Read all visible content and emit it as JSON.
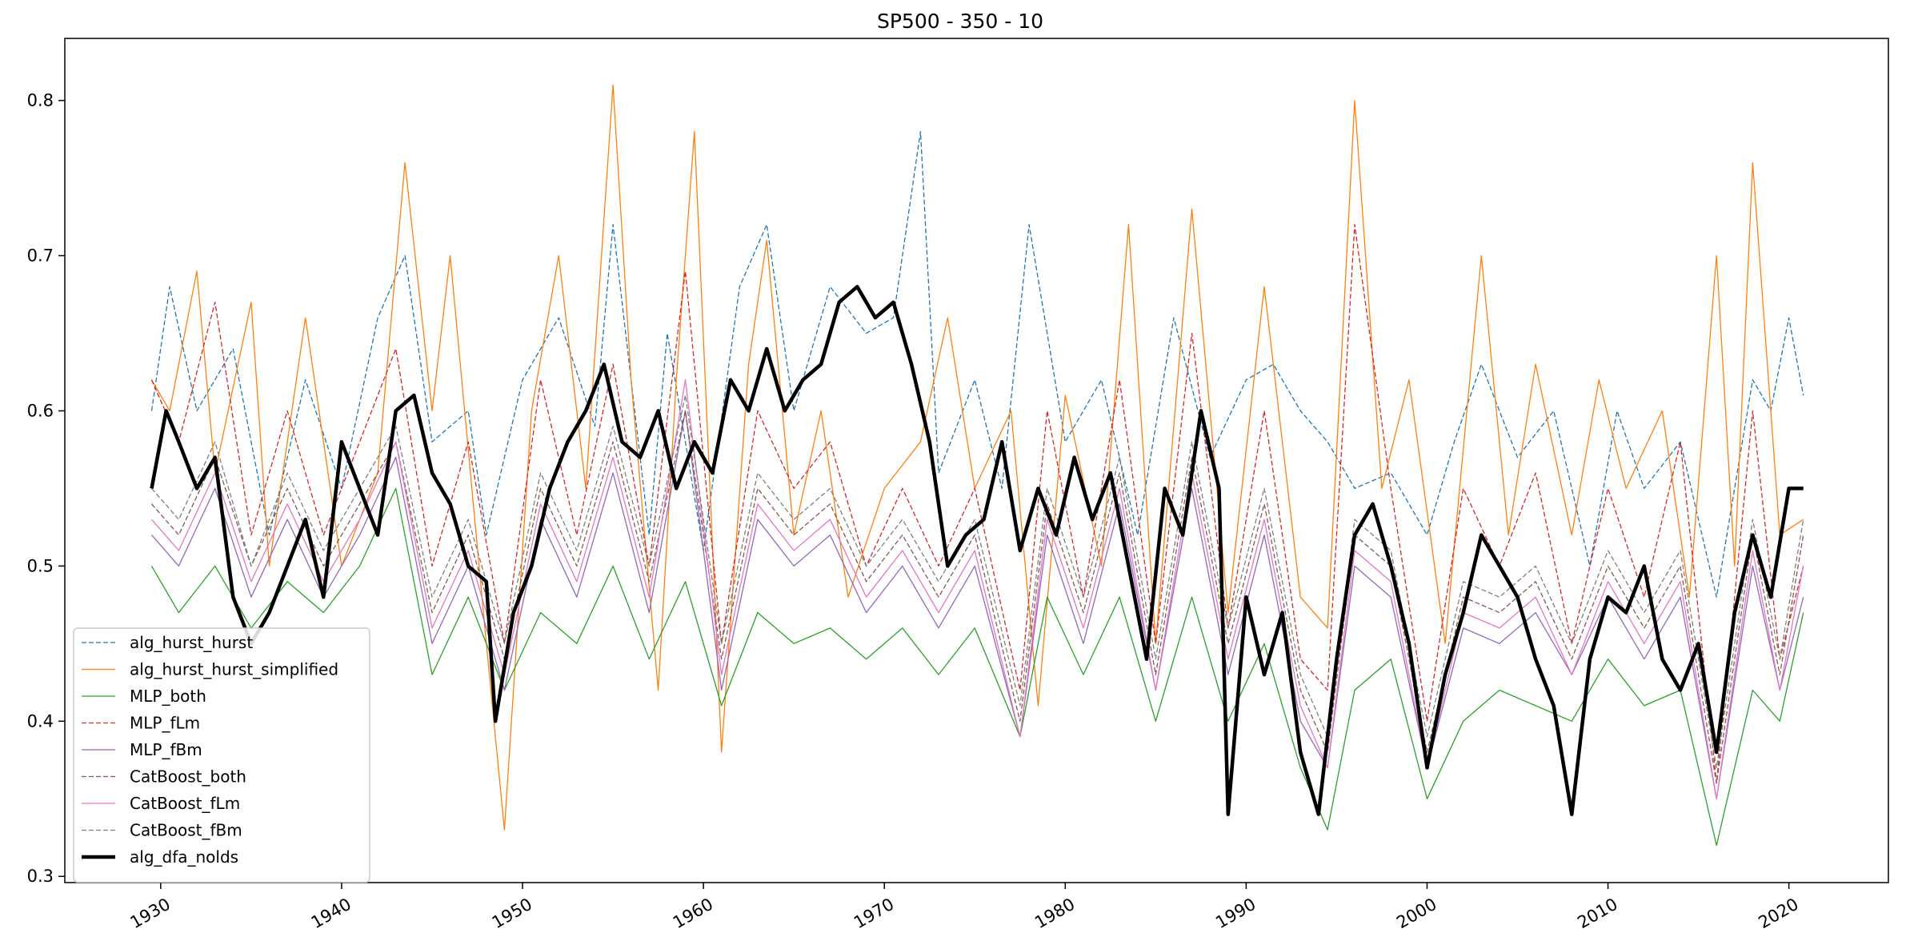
{
  "chart_data": {
    "type": "line",
    "title": "SP500 - 350 - 10",
    "xlabel": "",
    "ylabel": "",
    "xlim": [
      1924.7,
      2025.5
    ],
    "ylim": [
      0.296,
      0.84
    ],
    "x_ticks": [
      1930,
      1940,
      1950,
      1960,
      1970,
      1980,
      1990,
      2000,
      2010,
      2020
    ],
    "x_tick_labels": [
      "1930",
      "1940",
      "1950",
      "1960",
      "1970",
      "1980",
      "1990",
      "2000",
      "2010",
      "2020"
    ],
    "y_ticks": [
      0.3,
      0.4,
      0.5,
      0.6,
      0.7,
      0.8
    ],
    "y_tick_labels": [
      "0.3",
      "0.4",
      "0.5",
      "0.6",
      "0.7",
      "0.8"
    ],
    "grid": false,
    "legend_position": "lower-left",
    "series": [
      {
        "name": "alg_hurst_hurst",
        "color": "#1f77b4",
        "style": "dashed",
        "width": 1.3,
        "x": [
          1929.5,
          1930.5,
          1932,
          1934,
          1936,
          1938,
          1940,
          1942,
          1943.5,
          1945,
          1947,
          1948,
          1950,
          1952,
          1954,
          1955,
          1957,
          1958,
          1960,
          1962,
          1963.5,
          1965,
          1967,
          1969,
          1970.5,
          1972,
          1973,
          1975,
          1976.5,
          1978,
          1980,
          1982,
          1984,
          1986,
          1988,
          1990,
          1991.5,
          1993,
          1994.5,
          1996,
          1998,
          2000,
          2001.5,
          2003,
          2005,
          2007,
          2009,
          2010.5,
          2012,
          2014,
          2016,
          2018,
          2019,
          2020,
          2020.8
        ],
        "y": [
          0.6,
          0.68,
          0.6,
          0.64,
          0.52,
          0.62,
          0.55,
          0.66,
          0.7,
          0.58,
          0.6,
          0.52,
          0.62,
          0.66,
          0.59,
          0.72,
          0.52,
          0.65,
          0.51,
          0.68,
          0.72,
          0.6,
          0.68,
          0.65,
          0.66,
          0.78,
          0.56,
          0.62,
          0.55,
          0.72,
          0.58,
          0.62,
          0.52,
          0.66,
          0.57,
          0.62,
          0.63,
          0.6,
          0.58,
          0.55,
          0.56,
          0.52,
          0.58,
          0.63,
          0.57,
          0.6,
          0.5,
          0.6,
          0.55,
          0.58,
          0.48,
          0.62,
          0.6,
          0.66,
          0.61
        ]
      },
      {
        "name": "alg_hurst_hurst_simplified",
        "color": "#ff7f0e",
        "style": "solid",
        "width": 1.3,
        "x": [
          1929.5,
          1930.5,
          1932,
          1933,
          1935,
          1936,
          1938,
          1940,
          1942,
          1943.5,
          1945,
          1946,
          1948,
          1949,
          1950.5,
          1952,
          1953.5,
          1955,
          1956,
          1957.5,
          1958.5,
          1959.5,
          1961,
          1962.5,
          1963.5,
          1965,
          1966.5,
          1968,
          1970,
          1972,
          1973.5,
          1975,
          1977,
          1978.5,
          1980,
          1982,
          1983.5,
          1985,
          1987,
          1989,
          1991,
          1993,
          1994.5,
          1996,
          1997.5,
          1999,
          2001,
          2003,
          2004.5,
          2006,
          2008,
          2009.5,
          2011,
          2013,
          2014.5,
          2016,
          2017,
          2018,
          2019.5,
          2020.8
        ],
        "y": [
          0.62,
          0.6,
          0.69,
          0.56,
          0.67,
          0.5,
          0.66,
          0.5,
          0.56,
          0.76,
          0.6,
          0.7,
          0.45,
          0.33,
          0.6,
          0.7,
          0.55,
          0.81,
          0.62,
          0.42,
          0.62,
          0.78,
          0.38,
          0.63,
          0.71,
          0.52,
          0.6,
          0.48,
          0.55,
          0.58,
          0.66,
          0.55,
          0.6,
          0.41,
          0.61,
          0.5,
          0.72,
          0.45,
          0.73,
          0.47,
          0.68,
          0.48,
          0.46,
          0.8,
          0.55,
          0.62,
          0.45,
          0.7,
          0.52,
          0.63,
          0.52,
          0.62,
          0.55,
          0.6,
          0.48,
          0.7,
          0.5,
          0.76,
          0.52,
          0.53
        ]
      },
      {
        "name": "MLP_both",
        "color": "#2ca02c",
        "style": "solid",
        "width": 1.3,
        "x": [
          1929.5,
          1931,
          1933,
          1935,
          1937,
          1939,
          1941,
          1943,
          1945,
          1947,
          1949,
          1951,
          1953,
          1955,
          1957,
          1959,
          1961,
          1963,
          1965,
          1967,
          1969,
          1971,
          1973,
          1975,
          1977.5,
          1979,
          1981,
          1983,
          1985,
          1987,
          1989,
          1991,
          1993,
          1994.5,
          1996,
          1998,
          2000,
          2002,
          2004,
          2006,
          2008,
          2010,
          2012,
          2014,
          2016,
          2018,
          2019.5,
          2020.8
        ],
        "y": [
          0.5,
          0.47,
          0.5,
          0.46,
          0.49,
          0.47,
          0.5,
          0.55,
          0.43,
          0.48,
          0.42,
          0.47,
          0.45,
          0.5,
          0.44,
          0.49,
          0.41,
          0.47,
          0.45,
          0.46,
          0.44,
          0.46,
          0.43,
          0.46,
          0.39,
          0.48,
          0.43,
          0.48,
          0.4,
          0.48,
          0.4,
          0.45,
          0.37,
          0.33,
          0.42,
          0.44,
          0.35,
          0.4,
          0.42,
          0.41,
          0.4,
          0.44,
          0.41,
          0.42,
          0.32,
          0.42,
          0.4,
          0.47
        ]
      },
      {
        "name": "MLP_fLm",
        "color": "#d62728",
        "style": "dashed",
        "width": 1.3,
        "x": [
          1929.5,
          1931,
          1933,
          1935,
          1937,
          1939,
          1941,
          1943,
          1945,
          1947,
          1949,
          1951,
          1953,
          1955,
          1957,
          1959,
          1961,
          1963,
          1965,
          1967,
          1969,
          1971,
          1973,
          1975,
          1977.5,
          1979,
          1981,
          1983,
          1985,
          1987,
          1989,
          1991,
          1993,
          1994.5,
          1996,
          1998,
          2000,
          2002,
          2004,
          2006,
          2008,
          2010,
          2012,
          2014,
          2016,
          2018,
          2019.5,
          2020.8
        ],
        "y": [
          0.62,
          0.58,
          0.67,
          0.52,
          0.6,
          0.52,
          0.58,
          0.64,
          0.5,
          0.58,
          0.45,
          0.62,
          0.52,
          0.63,
          0.5,
          0.69,
          0.45,
          0.6,
          0.55,
          0.58,
          0.5,
          0.55,
          0.5,
          0.55,
          0.42,
          0.6,
          0.48,
          0.62,
          0.45,
          0.65,
          0.46,
          0.6,
          0.44,
          0.42,
          0.72,
          0.55,
          0.4,
          0.55,
          0.5,
          0.56,
          0.45,
          0.55,
          0.48,
          0.58,
          0.36,
          0.6,
          0.44,
          0.5
        ]
      },
      {
        "name": "MLP_fBm",
        "color": "#9467bd",
        "style": "solid",
        "width": 1.3,
        "x": [
          1929.5,
          1931,
          1933,
          1935,
          1937,
          1939,
          1941,
          1943,
          1945,
          1947,
          1949,
          1951,
          1953,
          1955,
          1957,
          1959,
          1961,
          1963,
          1965,
          1967,
          1969,
          1971,
          1973,
          1975,
          1977.5,
          1979,
          1981,
          1983,
          1985,
          1987,
          1989,
          1991,
          1993,
          1994.5,
          1996,
          1998,
          2000,
          2002,
          2004,
          2006,
          2008,
          2010,
          2012,
          2014,
          2016,
          2018,
          2019.5,
          2020.8
        ],
        "y": [
          0.52,
          0.5,
          0.55,
          0.48,
          0.53,
          0.48,
          0.52,
          0.57,
          0.45,
          0.5,
          0.42,
          0.53,
          0.48,
          0.56,
          0.47,
          0.6,
          0.42,
          0.53,
          0.5,
          0.52,
          0.47,
          0.5,
          0.46,
          0.5,
          0.39,
          0.52,
          0.45,
          0.54,
          0.42,
          0.55,
          0.43,
          0.52,
          0.4,
          0.37,
          0.5,
          0.48,
          0.37,
          0.46,
          0.45,
          0.47,
          0.43,
          0.48,
          0.44,
          0.48,
          0.35,
          0.5,
          0.42,
          0.48
        ]
      },
      {
        "name": "CatBoost_both",
        "color": "#8c564b",
        "style": "dashed",
        "width": 1.3,
        "x": [
          1929.5,
          1931,
          1933,
          1935,
          1937,
          1939,
          1941,
          1943,
          1945,
          1947,
          1949,
          1951,
          1953,
          1955,
          1957,
          1959,
          1961,
          1963,
          1965,
          1967,
          1969,
          1971,
          1973,
          1975,
          1977.5,
          1979,
          1981,
          1983,
          1985,
          1987,
          1989,
          1991,
          1993,
          1994.5,
          1996,
          1998,
          2000,
          2002,
          2004,
          2006,
          2008,
          2010,
          2012,
          2014,
          2016,
          2018,
          2019.5,
          2020.8
        ],
        "y": [
          0.54,
          0.52,
          0.57,
          0.5,
          0.55,
          0.5,
          0.54,
          0.58,
          0.47,
          0.52,
          0.44,
          0.55,
          0.5,
          0.58,
          0.49,
          0.6,
          0.44,
          0.55,
          0.52,
          0.54,
          0.49,
          0.52,
          0.48,
          0.52,
          0.4,
          0.54,
          0.47,
          0.56,
          0.43,
          0.57,
          0.45,
          0.54,
          0.42,
          0.38,
          0.52,
          0.5,
          0.38,
          0.48,
          0.47,
          0.49,
          0.44,
          0.5,
          0.46,
          0.5,
          0.36,
          0.52,
          0.43,
          0.52
        ]
      },
      {
        "name": "CatBoost_fLm",
        "color": "#e377c2",
        "style": "solid",
        "width": 1.3,
        "x": [
          1929.5,
          1931,
          1933,
          1935,
          1937,
          1939,
          1941,
          1943,
          1945,
          1947,
          1949,
          1951,
          1953,
          1955,
          1957,
          1959,
          1961,
          1963,
          1965,
          1967,
          1969,
          1971,
          1973,
          1975,
          1977.5,
          1979,
          1981,
          1983,
          1985,
          1987,
          1989,
          1991,
          1993,
          1994.5,
          1996,
          1998,
          2000,
          2002,
          2004,
          2006,
          2008,
          2010,
          2012,
          2014,
          2016,
          2018,
          2019.5,
          2020.8
        ],
        "y": [
          0.53,
          0.51,
          0.56,
          0.49,
          0.54,
          0.49,
          0.53,
          0.58,
          0.46,
          0.51,
          0.43,
          0.54,
          0.49,
          0.57,
          0.48,
          0.62,
          0.43,
          0.54,
          0.51,
          0.53,
          0.48,
          0.51,
          0.47,
          0.51,
          0.39,
          0.53,
          0.46,
          0.55,
          0.42,
          0.56,
          0.44,
          0.53,
          0.41,
          0.37,
          0.51,
          0.49,
          0.37,
          0.47,
          0.46,
          0.48,
          0.43,
          0.49,
          0.45,
          0.49,
          0.35,
          0.51,
          0.42,
          0.5
        ]
      },
      {
        "name": "CatBoost_fBm",
        "color": "#7f7f7f",
        "style": "dashed",
        "width": 1.3,
        "x": [
          1929.5,
          1931,
          1933,
          1935,
          1937,
          1939,
          1941,
          1943,
          1945,
          1947,
          1949,
          1951,
          1953,
          1955,
          1957,
          1959,
          1961,
          1963,
          1965,
          1967,
          1969,
          1971,
          1973,
          1975,
          1977.5,
          1979,
          1981,
          1983,
          1985,
          1987,
          1989,
          1991,
          1993,
          1994.5,
          1996,
          1998,
          2000,
          2002,
          2004,
          2006,
          2008,
          2010,
          2012,
          2014,
          2016,
          2018,
          2019.5,
          2020.8
        ],
        "y": [
          0.55,
          0.53,
          0.58,
          0.5,
          0.56,
          0.51,
          0.55,
          0.59,
          0.48,
          0.53,
          0.45,
          0.56,
          0.51,
          0.59,
          0.5,
          0.61,
          0.45,
          0.56,
          0.53,
          0.55,
          0.5,
          0.53,
          0.49,
          0.53,
          0.41,
          0.55,
          0.48,
          0.57,
          0.44,
          0.58,
          0.46,
          0.55,
          0.43,
          0.39,
          0.53,
          0.51,
          0.39,
          0.49,
          0.48,
          0.5,
          0.45,
          0.51,
          0.47,
          0.51,
          0.37,
          0.53,
          0.44,
          0.53
        ]
      },
      {
        "name": "alg_dfa_nolds",
        "color": "#000000",
        "style": "solid",
        "width": 4.5,
        "x": [
          1929.5,
          1930.3,
          1931,
          1932,
          1933,
          1934,
          1935,
          1936,
          1937,
          1938,
          1939,
          1940,
          1941,
          1942,
          1943,
          1944,
          1945,
          1946,
          1947,
          1948,
          1948.5,
          1949.5,
          1950.5,
          1951.5,
          1952.5,
          1953.5,
          1954.5,
          1955.5,
          1956.5,
          1957.5,
          1958.5,
          1959.5,
          1960.5,
          1961.5,
          1962.5,
          1963.5,
          1964.5,
          1965.5,
          1966.5,
          1967.5,
          1968.5,
          1969.5,
          1970.5,
          1971.5,
          1972.5,
          1973.5,
          1974.5,
          1975.5,
          1976.5,
          1977.5,
          1978.5,
          1979.5,
          1980.5,
          1981.5,
          1982.5,
          1983.5,
          1984.5,
          1985.5,
          1986.5,
          1987.5,
          1988.5,
          1989,
          1990,
          1991,
          1992,
          1993,
          1994,
          1995,
          1996,
          1997,
          1998,
          1999,
          2000,
          2001,
          2002,
          2003,
          2004,
          2005,
          2006,
          2007,
          2008,
          2009,
          2010,
          2011,
          2012,
          2013,
          2014,
          2015,
          2016,
          2017,
          2018,
          2019,
          2020,
          2020.8
        ],
        "y": [
          0.55,
          0.6,
          0.58,
          0.55,
          0.57,
          0.48,
          0.45,
          0.47,
          0.5,
          0.53,
          0.48,
          0.58,
          0.55,
          0.52,
          0.6,
          0.61,
          0.56,
          0.54,
          0.5,
          0.49,
          0.4,
          0.47,
          0.5,
          0.55,
          0.58,
          0.6,
          0.63,
          0.58,
          0.57,
          0.6,
          0.55,
          0.58,
          0.56,
          0.62,
          0.6,
          0.64,
          0.6,
          0.62,
          0.63,
          0.67,
          0.68,
          0.66,
          0.67,
          0.63,
          0.58,
          0.5,
          0.52,
          0.53,
          0.58,
          0.51,
          0.55,
          0.52,
          0.57,
          0.53,
          0.56,
          0.5,
          0.44,
          0.55,
          0.52,
          0.6,
          0.55,
          0.34,
          0.48,
          0.43,
          0.47,
          0.38,
          0.34,
          0.44,
          0.52,
          0.54,
          0.5,
          0.45,
          0.37,
          0.43,
          0.47,
          0.52,
          0.5,
          0.48,
          0.44,
          0.41,
          0.34,
          0.44,
          0.48,
          0.47,
          0.5,
          0.44,
          0.42,
          0.45,
          0.38,
          0.47,
          0.52,
          0.48,
          0.55,
          0.55
        ]
      }
    ]
  }
}
